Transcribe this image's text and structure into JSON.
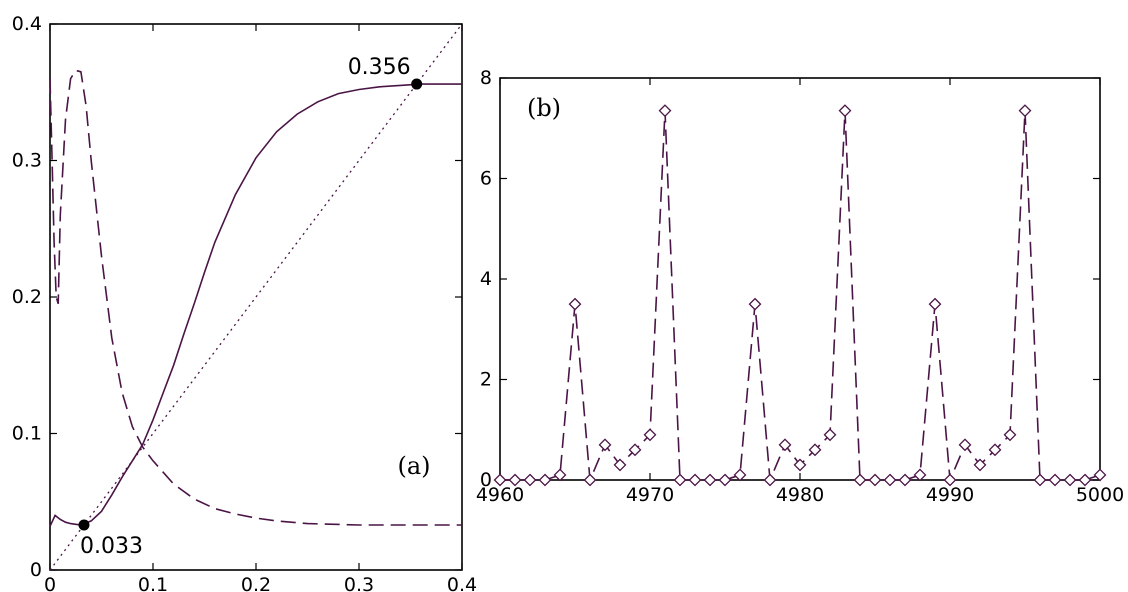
{
  "colors": {
    "curve": "#4a1546",
    "marker": "#000000",
    "axis": "#000000"
  },
  "chart_data": [
    {
      "id": "a",
      "type": "line",
      "panel_label": "(a)",
      "xlim": [
        0,
        0.4
      ],
      "ylim": [
        0,
        0.4
      ],
      "xticks": [
        0,
        0.1,
        0.2,
        0.3,
        0.4
      ],
      "yticks": [
        0,
        0.1,
        0.2,
        0.3,
        0.4
      ],
      "xtick_labels": [
        "0",
        "0.1",
        "0.2",
        "0.3",
        "0.4"
      ],
      "ytick_labels": [
        "0",
        "0.1",
        "0.2",
        "0.3",
        "0.4"
      ],
      "series": [
        {
          "name": "solid",
          "style": "solid",
          "x": [
            0,
            0.005,
            0.01,
            0.015,
            0.02,
            0.03,
            0.04,
            0.05,
            0.06,
            0.07,
            0.08,
            0.09,
            0.1,
            0.11,
            0.12,
            0.13,
            0.14,
            0.15,
            0.16,
            0.18,
            0.2,
            0.22,
            0.24,
            0.26,
            0.28,
            0.3,
            0.32,
            0.34,
            0.36,
            0.38,
            0.4
          ],
          "y": [
            0.032,
            0.04,
            0.037,
            0.035,
            0.034,
            0.033,
            0.036,
            0.043,
            0.055,
            0.068,
            0.08,
            0.092,
            0.11,
            0.13,
            0.15,
            0.173,
            0.195,
            0.218,
            0.24,
            0.275,
            0.302,
            0.321,
            0.334,
            0.343,
            0.349,
            0.352,
            0.354,
            0.355,
            0.356,
            0.356,
            0.356
          ]
        },
        {
          "name": "dashed",
          "style": "dashed",
          "x": [
            0,
            0.002,
            0.004,
            0.006,
            0.008,
            0.01,
            0.015,
            0.02,
            0.025,
            0.03,
            0.035,
            0.04,
            0.05,
            0.06,
            0.07,
            0.08,
            0.09,
            0.1,
            0.12,
            0.14,
            0.16,
            0.18,
            0.2,
            0.22,
            0.25,
            0.3,
            0.35,
            0.4
          ],
          "y": [
            0.36,
            0.3,
            0.24,
            0.2,
            0.195,
            0.26,
            0.33,
            0.36,
            0.366,
            0.365,
            0.34,
            0.3,
            0.23,
            0.17,
            0.13,
            0.105,
            0.09,
            0.08,
            0.063,
            0.052,
            0.045,
            0.041,
            0.038,
            0.036,
            0.034,
            0.033,
            0.033,
            0.033
          ]
        },
        {
          "name": "diagonal",
          "style": "dotted",
          "x": [
            0,
            0.4
          ],
          "y": [
            0,
            0.4
          ]
        }
      ],
      "points": [
        {
          "x": 0.033,
          "y": 0.033,
          "label": "0.033"
        },
        {
          "x": 0.356,
          "y": 0.356,
          "label": "0.356"
        }
      ]
    },
    {
      "id": "b",
      "type": "line",
      "panel_label": "(b)",
      "xlim": [
        4960,
        5000
      ],
      "ylim": [
        0,
        8
      ],
      "xticks": [
        4960,
        4970,
        4980,
        4990,
        5000
      ],
      "yticks": [
        0,
        2,
        4,
        6,
        8
      ],
      "xtick_labels": [
        "4960",
        "4970",
        "4980",
        "4990",
        "5000"
      ],
      "ytick_labels": [
        "0",
        "2",
        "4",
        "6",
        "8"
      ],
      "series": [
        {
          "name": "sequence",
          "style": "dashed",
          "marker": "diamond",
          "x": [
            4960,
            4961,
            4962,
            4963,
            4964,
            4965,
            4966,
            4967,
            4968,
            4969,
            4970,
            4971,
            4972,
            4973,
            4974,
            4975,
            4976,
            4977,
            4978,
            4979,
            4980,
            4981,
            4982,
            4983,
            4984,
            4985,
            4986,
            4987,
            4988,
            4989,
            4990,
            4991,
            4992,
            4993,
            4994,
            4995,
            4996,
            4997,
            4998,
            4999,
            5000
          ],
          "y": [
            0,
            0,
            0,
            0,
            0.1,
            3.5,
            0,
            0.7,
            0.3,
            0.6,
            0.9,
            7.35,
            0,
            0,
            0,
            0,
            0.1,
            3.5,
            0,
            0.7,
            0.3,
            0.6,
            0.9,
            7.35,
            0,
            0,
            0,
            0,
            0.1,
            3.5,
            0,
            0.7,
            0.3,
            0.6,
            0.9,
            7.35,
            0,
            0,
            0,
            0,
            0.1
          ]
        }
      ]
    }
  ]
}
